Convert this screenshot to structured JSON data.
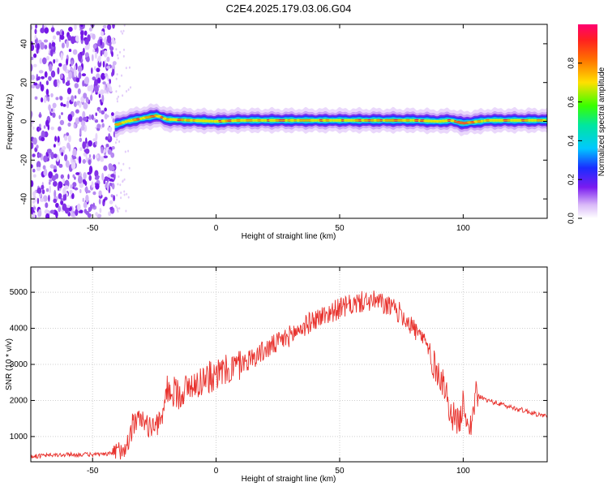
{
  "title": "C2E4.2025.179.03.06.G04",
  "chart_data": [
    {
      "type": "heatmap",
      "xlabel": "Height of straight line (km)",
      "ylabel": "Frequency (Hz)",
      "xlim": [
        -75,
        134
      ],
      "ylim": [
        -50,
        50
      ],
      "xticks": [
        -50,
        0,
        50,
        100
      ],
      "yticks": [
        -40,
        -20,
        0,
        20,
        40
      ],
      "colorbar": {
        "label": "Normalized spectral amplitude",
        "ticks": [
          0.0,
          0.2,
          0.4,
          0.6,
          0.8
        ],
        "range": [
          0,
          1
        ]
      },
      "noise_region_x": [
        -75,
        -41
      ],
      "ridge": {
        "x": [
          -41,
          -36,
          -32,
          -28,
          -24,
          -20,
          -10,
          0,
          10,
          20,
          40,
          60,
          80,
          90,
          95,
          100,
          110,
          120,
          134
        ],
        "y": [
          -2,
          0,
          1,
          2,
          3,
          1,
          0.5,
          0,
          0.5,
          0.5,
          0.5,
          0.5,
          0.5,
          0,
          0.5,
          -1,
          0.5,
          0.5,
          0.5
        ]
      }
    },
    {
      "type": "line",
      "xlabel": "Height of straight line (km)",
      "ylabel": "SNR (10 * v/v)",
      "xlim": [
        -75,
        134
      ],
      "ylim": [
        300,
        5700
      ],
      "xticks": [
        -50,
        0,
        50,
        100
      ],
      "yticks": [
        1000,
        2000,
        3000,
        4000,
        5000
      ],
      "series": [
        {
          "color": "#e8322d",
          "x": [
            -75,
            -60,
            -45,
            -40,
            -36,
            -33,
            -30,
            -28,
            -25,
            -22,
            -20,
            -15,
            -10,
            -5,
            0,
            5,
            10,
            20,
            30,
            40,
            50,
            55,
            60,
            65,
            70,
            75,
            80,
            85,
            88,
            92,
            95,
            98,
            100,
            103,
            105,
            110,
            120,
            134
          ],
          "y": [
            450,
            500,
            500,
            560,
            800,
            1400,
            1500,
            1300,
            1250,
            1450,
            2300,
            2200,
            2400,
            2600,
            2700,
            2850,
            3000,
            3400,
            3800,
            4250,
            4550,
            4650,
            4750,
            4750,
            4600,
            4400,
            4000,
            3600,
            3000,
            2500,
            1650,
            1350,
            1900,
            1250,
            2150,
            2000,
            1800,
            1550
          ]
        }
      ]
    }
  ]
}
